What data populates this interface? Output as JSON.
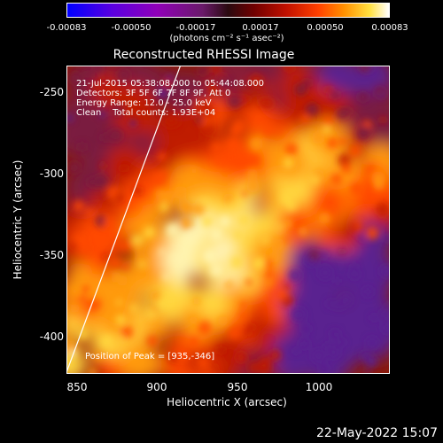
{
  "colorbar": {
    "ticks": [
      "-0.00083",
      "-0.00050",
      "-0.00017",
      "0.00017",
      "0.00050",
      "0.00083"
    ],
    "units": "(photons cm⁻² s⁻¹ asec⁻²)",
    "colors": [
      "#0000ff",
      "#9000b8",
      "#2a0a10",
      "#c01000",
      "#ff9000",
      "#ffffff"
    ]
  },
  "chart_data": {
    "type": "heatmap",
    "title": "Reconstructed RHESSI Image",
    "xlabel": "Heliocentric X (arcsec)",
    "ylabel": "Heliocentric Y (arcsec)",
    "xlim": [
      843,
      1036
    ],
    "ylim": [
      -421,
      -234
    ],
    "xticks": [
      "850",
      "900",
      "950",
      "1000"
    ],
    "yticks": [
      "-250",
      "-300",
      "-350",
      "-400"
    ],
    "vrange": [
      -0.00083,
      0.00083
    ],
    "peak": [
      935,
      -346
    ],
    "annotations": [
      "21-Jul-2015 05:38:08.000 to 05:44:08.000",
      "Detectors: 3F 5F 6F 7F 8F 9F, Att 0",
      "Energy Range: 12.0 - 25.0 keV",
      "Clean    Total counts: 1.93E+04"
    ],
    "peak_label": "Position of Peak = [935,-346]"
  },
  "datestamp": "22-May-2022 15:07"
}
